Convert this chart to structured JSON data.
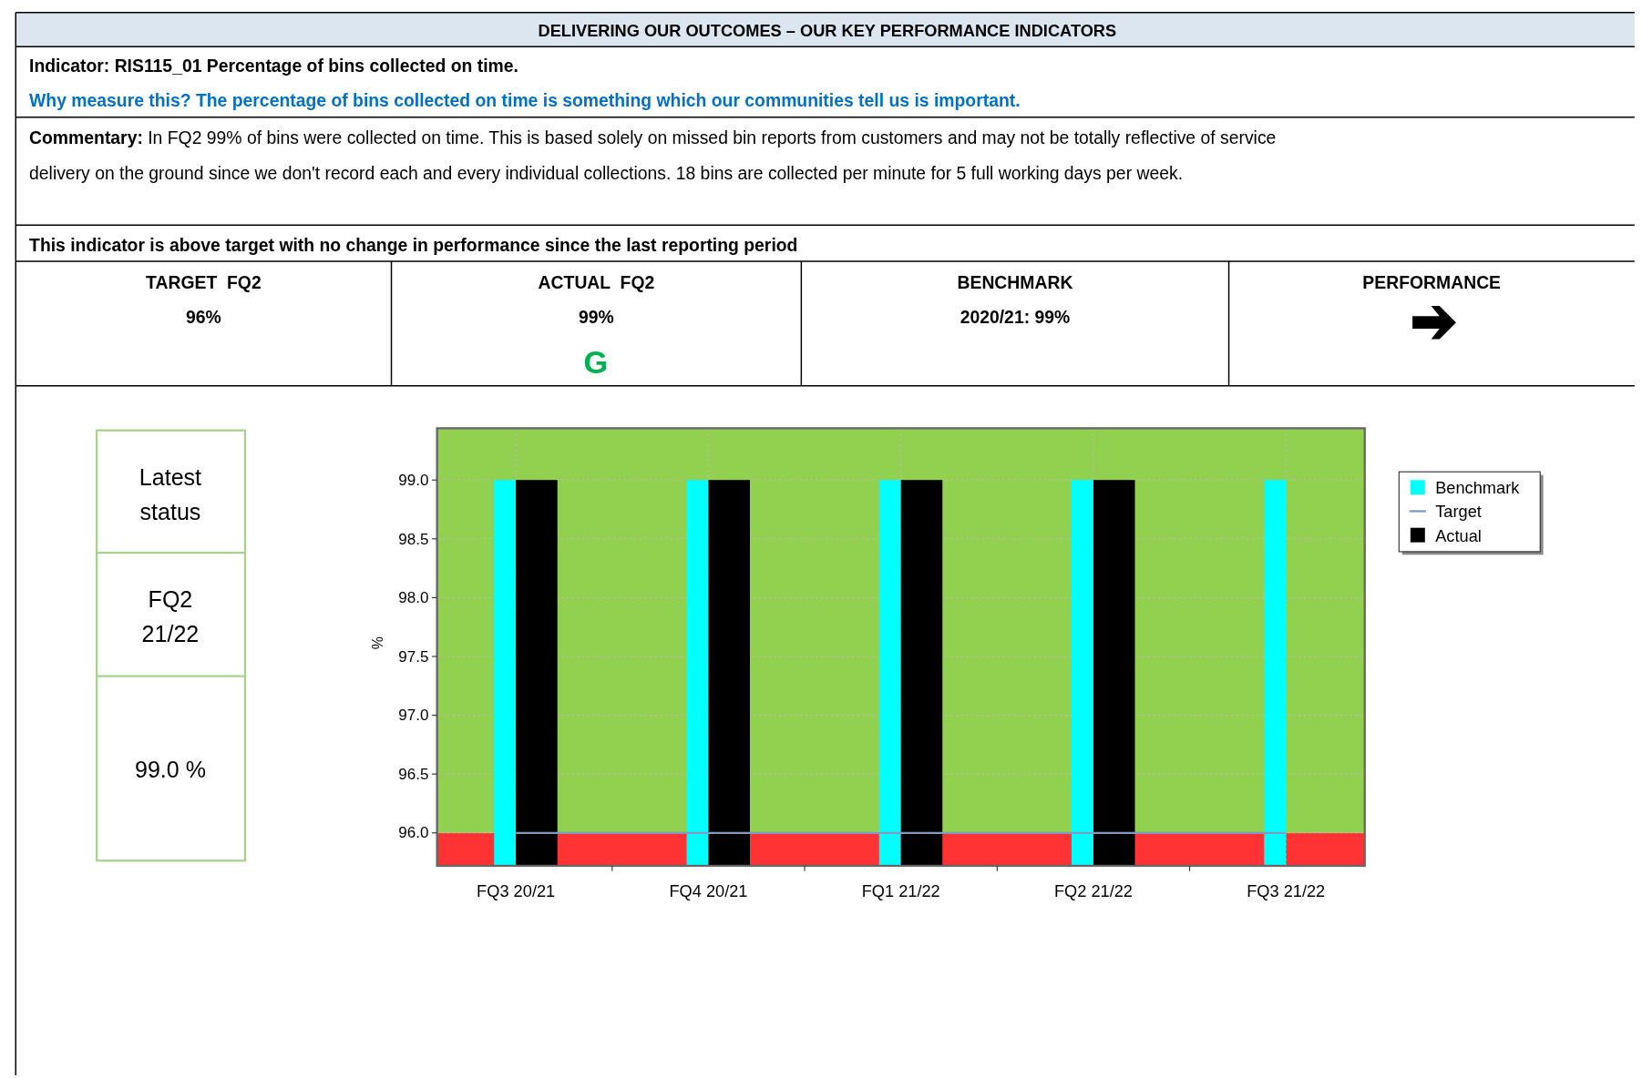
{
  "chart_data": {
    "type": "bar",
    "title": "DELIVERING OUR OUTCOMES – OUR KEY PERFORMANCE INDICATORS",
    "subtitle": "Indicator: RIS115_01 Percentage of bins collected on time.",
    "ylabel": "%",
    "categories": [
      "FQ3 20/21",
      "FQ4 20/21",
      "FQ1 21/22",
      "FQ2 21/22",
      "FQ3 21/22"
    ],
    "series": [
      {
        "name": "Benchmark",
        "color": "#00ffff",
        "values": [
          99,
          99,
          99,
          99,
          99
        ]
      },
      {
        "name": "Target",
        "type": "line",
        "color": "#7f9cc0",
        "values": [
          96,
          96,
          96,
          96,
          96
        ]
      },
      {
        "name": "Actual",
        "color": "#000000",
        "values": [
          99,
          99,
          99,
          99,
          null
        ]
      }
    ],
    "ylim": [
      95.72,
      99.44
    ],
    "yticks": [
      {
        "value": 96,
        "label": "96.0"
      },
      {
        "value": 96.5,
        "label": "96.5"
      },
      {
        "value": 97,
        "label": "97.0"
      },
      {
        "value": 97.5,
        "label": "97.5"
      },
      {
        "value": 98,
        "label": "98.0"
      },
      {
        "value": 98.5,
        "label": "98.5"
      },
      {
        "value": 99,
        "label": "99.0"
      }
    ],
    "bands": [
      {
        "axis": "y",
        "from": 95.72,
        "to": 96,
        "color": "#ff3333"
      },
      {
        "axis": "y",
        "from": 96,
        "to": 99.44,
        "color": "#92d050"
      }
    ],
    "grid": true,
    "legend": "right",
    "annotations": [
      "Why measure this? The percentage of bins collected on time is something which our communities tell us is important.",
      "Commentary: In FQ2 99% of bins were collected on time. This is based solely on missed bin reports from customers and may not be totally reflective of service delivery on the ground since we don't record each and every individual collections. 18 bins are collected per minute for 5 full working days per week.",
      "This indicator is above target with no change in performance since the last reporting period",
      "TARGET  FQ2",
      "96%",
      "ACTUAL  FQ2",
      "99%",
      "G",
      "BENCHMARK",
      "2020/21: 99%",
      "PERFORMANCE",
      "Latest status",
      "FQ2 21/22",
      "99.0 %"
    ]
  }
}
